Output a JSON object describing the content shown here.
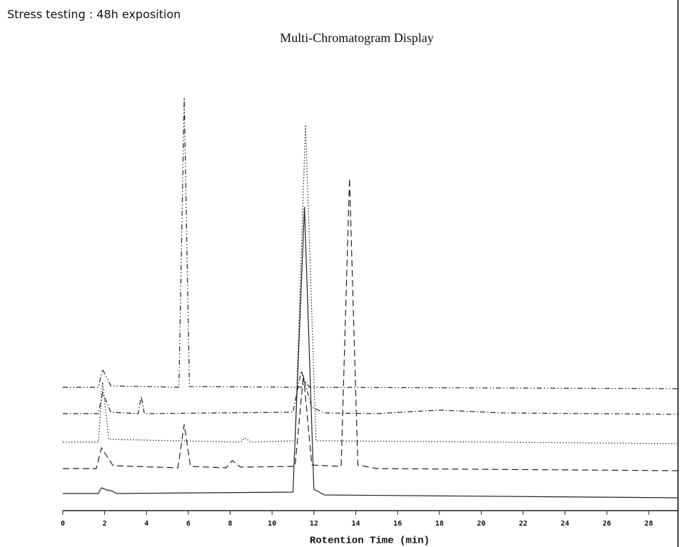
{
  "header": {
    "title": "Stress testing : 48h exposition"
  },
  "chart_data": {
    "type": "line",
    "title": "Multi-Chromatogram Display",
    "x_label": "Rotention Time (min)",
    "xlim": [
      0,
      29.4
    ],
    "xticks": [
      0,
      2,
      4,
      6,
      8,
      10,
      12,
      14,
      16,
      18,
      20,
      22,
      24,
      26,
      28
    ],
    "ylim": [
      0,
      600
    ],
    "series": [
      {
        "color": "#222222",
        "dash": "solid",
        "x": [
          0,
          1.7,
          1.85,
          2.1,
          2.3,
          2.6,
          11.0,
          11.55,
          12.0,
          12.5,
          29.4
        ],
        "values": [
          24,
          24,
          32,
          29,
          28,
          24,
          26,
          426,
          30,
          22,
          18
        ]
      },
      {
        "color": "#222222",
        "dash": "dashed",
        "x": [
          0,
          1.6,
          1.85,
          2.4,
          5.5,
          5.8,
          6.1,
          7.8,
          8.1,
          8.5,
          11.1,
          11.5,
          11.9,
          13.3,
          13.7,
          14.1,
          15,
          29.4
        ],
        "values": [
          59,
          59,
          88,
          63,
          60,
          121,
          62,
          60,
          70,
          61,
          62,
          190,
          64,
          62,
          466,
          64,
          59,
          56
        ]
      },
      {
        "color": "#222222",
        "dash": "dotted",
        "x": [
          0,
          1.7,
          1.9,
          2.2,
          8.5,
          8.7,
          9.0,
          11.1,
          11.6,
          12.1,
          29.4
        ],
        "values": [
          96,
          96,
          180,
          100,
          96,
          102,
          96,
          98,
          541,
          98,
          94
        ]
      },
      {
        "color": "#222222",
        "dash": "dashdot",
        "x": [
          0,
          1.7,
          1.9,
          2.3,
          3.6,
          3.75,
          3.9,
          11.0,
          11.4,
          11.9,
          12.5,
          15,
          18,
          21,
          29.4
        ],
        "values": [
          136,
          136,
          165,
          138,
          136,
          160,
          136,
          138,
          196,
          145,
          137,
          136,
          141,
          137,
          135
        ]
      },
      {
        "color": "#222222",
        "dash": "dashdotdot",
        "x": [
          0,
          1.7,
          1.9,
          2.3,
          5.55,
          5.8,
          6.05,
          11.4,
          11.6,
          11.8,
          29.4
        ],
        "values": [
          173,
          173,
          198,
          175,
          173,
          579,
          174,
          173,
          180,
          173,
          171
        ]
      }
    ]
  }
}
